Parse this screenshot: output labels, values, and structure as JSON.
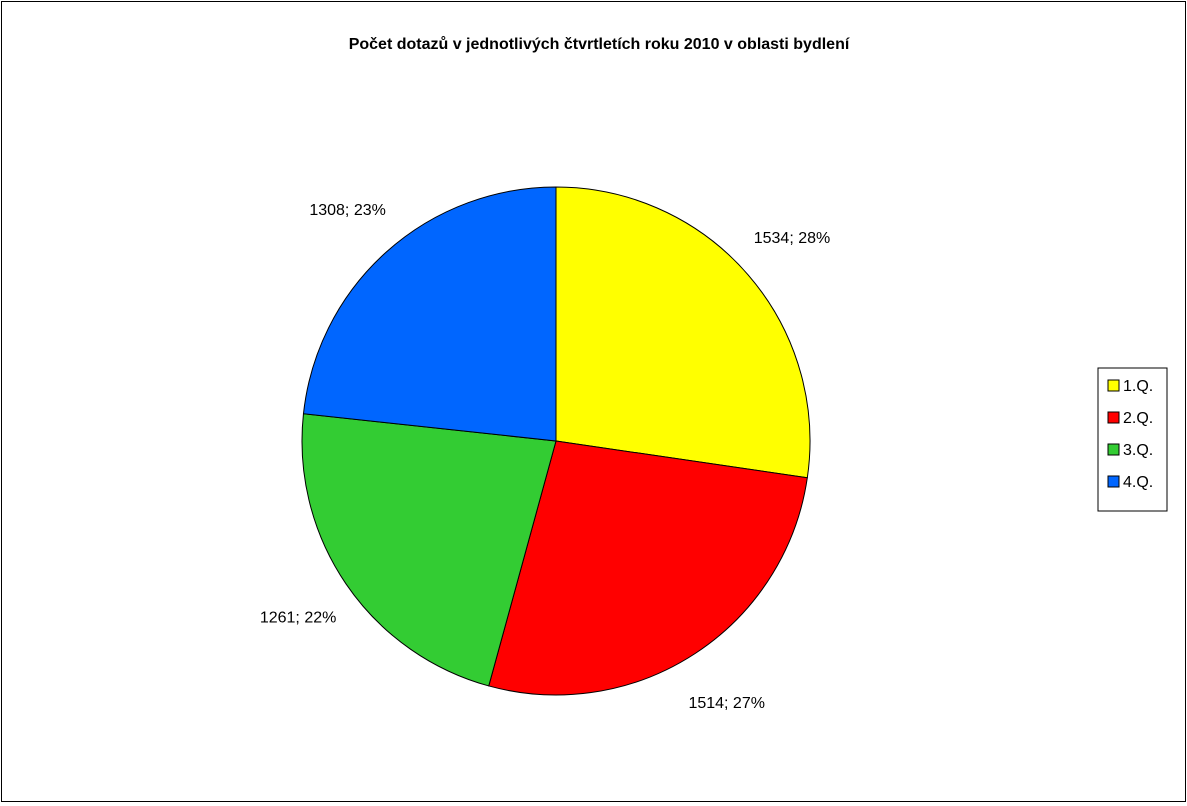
{
  "chart_data": {
    "type": "pie",
    "title": "Počet dotazů v jednotlivých čtvrtletích roku 2010 v oblasti bydlení",
    "categories": [
      "1.Q.",
      "2.Q.",
      "3.Q.",
      "4.Q."
    ],
    "values": [
      1534,
      1514,
      1261,
      1308
    ],
    "percent_labels": [
      "28%",
      "27%",
      "22%",
      "23%"
    ],
    "data_labels": [
      "1534; 28%",
      "1514; 27%",
      "1261; 22%",
      "1308; 23%"
    ],
    "colors": [
      "#FFFF00",
      "#FF0000",
      "#33CC33",
      "#0066FF"
    ],
    "start_angle": "12 o'clock",
    "direction": "clockwise",
    "legend_position": "right"
  }
}
